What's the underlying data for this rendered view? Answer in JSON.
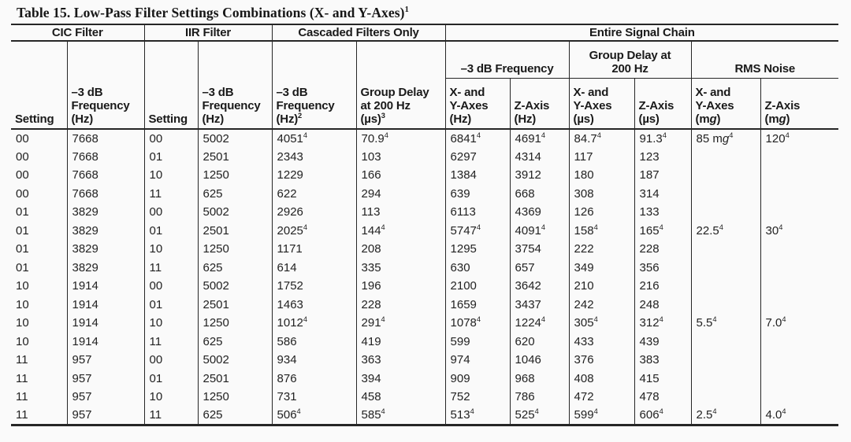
{
  "page": {
    "title": "Table 15. Low-Pass Filter Settings Combinations (X- and Y-Axes)^1^"
  },
  "colors": {
    "background": "#fafafa",
    "text": "#1e1e1e",
    "border": "#262626"
  },
  "table": {
    "groups": [
      {
        "label": "CIC Filter"
      },
      {
        "label": "IIR Filter"
      },
      {
        "label": "Cascaded Filters Only"
      },
      {
        "label": "Entire Signal Chain"
      }
    ],
    "subgroups": [
      {
        "label": "–3 dB Frequency"
      },
      {
        "label": "Group Delay at\n200 Hz"
      },
      {
        "label": "RMS Noise"
      }
    ],
    "columns": [
      {
        "text": "Setting"
      },
      {
        "text": "–3 dB\nFrequency\n(Hz)"
      },
      {
        "text": "Setting"
      },
      {
        "text": "–3 dB\nFrequency\n(Hz)"
      },
      {
        "text": "–3 dB\nFrequency\n(Hz)^2^"
      },
      {
        "text": "Group Delay\nat 200 Hz\n(µs)^3^"
      },
      {
        "text": "X- and\nY-Axes\n(Hz)"
      },
      {
        "text": "Z-Axis\n(Hz)"
      },
      {
        "text": "X- and\nY-Axes\n(µs)"
      },
      {
        "text": "Z-Axis\n(µs)"
      },
      {
        "text": "X- and\nY-Axes\n(m{g})"
      },
      {
        "text": "Z-Axis\n(m{g})"
      }
    ],
    "rows": [
      [
        "00",
        "7668",
        "00",
        "5002",
        "4051^4^",
        "70.9^4^",
        "6841^4^",
        "4691^4^",
        "84.7^4^",
        "91.3^4^",
        "85 m{g}^4^",
        "120^4^"
      ],
      [
        "00",
        "7668",
        "01",
        "2501",
        "2343",
        "103",
        "6297",
        "4314",
        "117",
        "123",
        "",
        ""
      ],
      [
        "00",
        "7668",
        "10",
        "1250",
        "1229",
        "166",
        "1384",
        "3912",
        "180",
        "187",
        "",
        ""
      ],
      [
        "00",
        "7668",
        "11",
        "625",
        "622",
        "294",
        "639",
        "668",
        "308",
        "314",
        "",
        ""
      ],
      [
        "01",
        "3829",
        "00",
        "5002",
        "2926",
        "113",
        "6113",
        "4369",
        "126",
        "133",
        "",
        ""
      ],
      [
        "01",
        "3829",
        "01",
        "2501",
        "2025^4^",
        "144^4^",
        "5747^4^",
        "4091^4^",
        "158^4^",
        "165^4^",
        "22.5^4^",
        "30^4^"
      ],
      [
        "01",
        "3829",
        "10",
        "1250",
        "1171",
        "208",
        "1295",
        "3754",
        "222",
        "228",
        "",
        ""
      ],
      [
        "01",
        "3829",
        "11",
        "625",
        "614",
        "335",
        "630",
        "657",
        "349",
        "356",
        "",
        ""
      ],
      [
        "10",
        "1914",
        "00",
        "5002",
        "1752",
        "196",
        "2100",
        "3642",
        "210",
        "216",
        "",
        ""
      ],
      [
        "10",
        "1914",
        "01",
        "2501",
        "1463",
        "228",
        "1659",
        "3437",
        "242",
        "248",
        "",
        ""
      ],
      [
        "10",
        "1914",
        "10",
        "1250",
        "1012^4^",
        "291^4^",
        "1078^4^",
        "1224^4^",
        "305^4^",
        "312^4^",
        "5.5^4^",
        "7.0^4^"
      ],
      [
        "10",
        "1914",
        "11",
        "625",
        "586",
        "419",
        "599",
        "620",
        "433",
        "439",
        "",
        ""
      ],
      [
        "11",
        "957",
        "00",
        "5002",
        "934",
        "363",
        "974",
        "1046",
        "376",
        "383",
        "",
        ""
      ],
      [
        "11",
        "957",
        "01",
        "2501",
        "876",
        "394",
        "909",
        "968",
        "408",
        "415",
        "",
        ""
      ],
      [
        "11",
        "957",
        "10",
        "1250",
        "731",
        "458",
        "752",
        "786",
        "472",
        "478",
        "",
        ""
      ],
      [
        "11",
        "957",
        "11",
        "625",
        "506^4^",
        "585^4^",
        "513^4^",
        "525^4^",
        "599^4^",
        "606^4^",
        "2.5^4^",
        "4.0^4^"
      ]
    ]
  }
}
